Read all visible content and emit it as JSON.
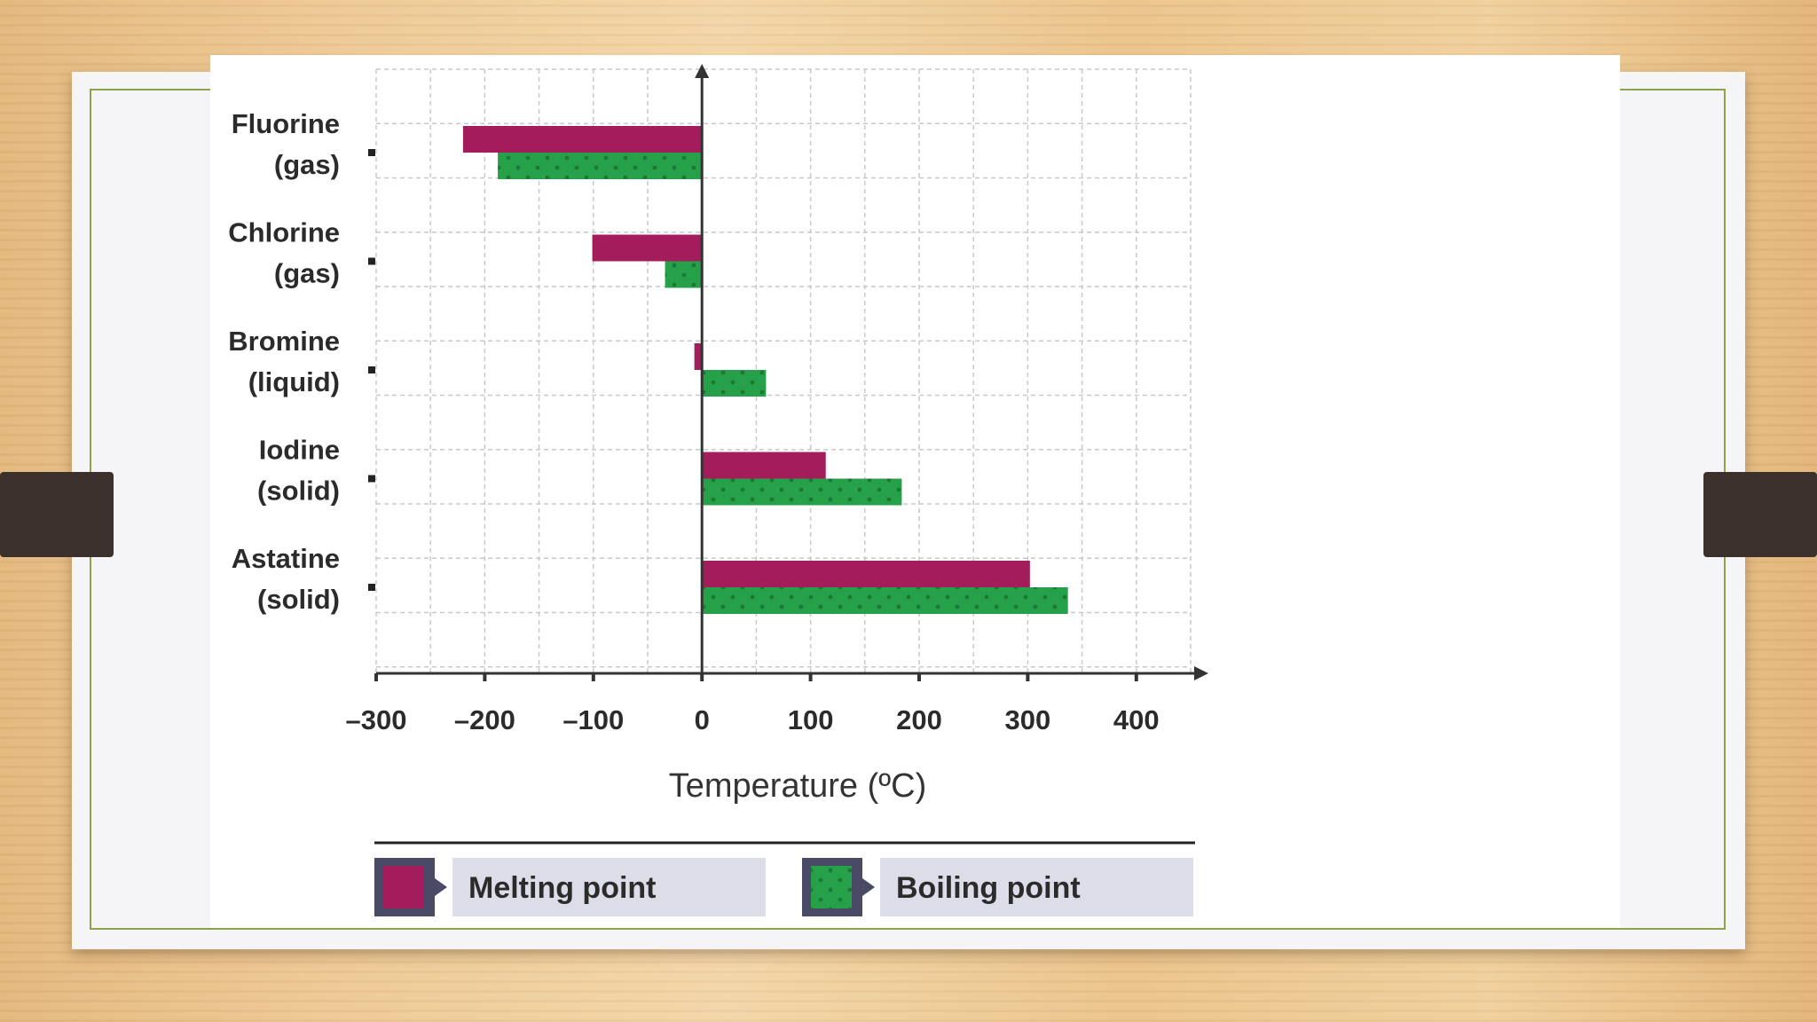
{
  "chart_data": {
    "type": "bar",
    "orientation": "horizontal",
    "categories": [
      "Fluorine (gas)",
      "Chlorine (gas)",
      "Bromine (liquid)",
      "Iodine (solid)",
      "Astatine (solid)"
    ],
    "category_lines": [
      [
        "Fluorine",
        "(gas)"
      ],
      [
        "Chlorine",
        "(gas)"
      ],
      [
        "Bromine",
        "(liquid)"
      ],
      [
        "Iodine",
        "(solid)"
      ],
      [
        "Astatine",
        "(solid)"
      ]
    ],
    "series": [
      {
        "name": "Melting point",
        "values": [
          -220,
          -101,
          -7,
          114,
          302
        ]
      },
      {
        "name": "Boiling point",
        "values": [
          -188,
          -34,
          59,
          184,
          337
        ]
      }
    ],
    "xlabel": "Temperature (ºC)",
    "xlim": [
      -300,
      450
    ],
    "x_ticks": [
      -300,
      -200,
      -100,
      0,
      100,
      200,
      300,
      400
    ],
    "x_tick_labels": [
      "–300",
      "–200",
      "–100",
      "0",
      "100",
      "200",
      "300",
      "400"
    ],
    "grid": true,
    "legend_position": "bottom",
    "colors": {
      "melting": "#a31c5c",
      "boiling": "#27a04a"
    }
  }
}
